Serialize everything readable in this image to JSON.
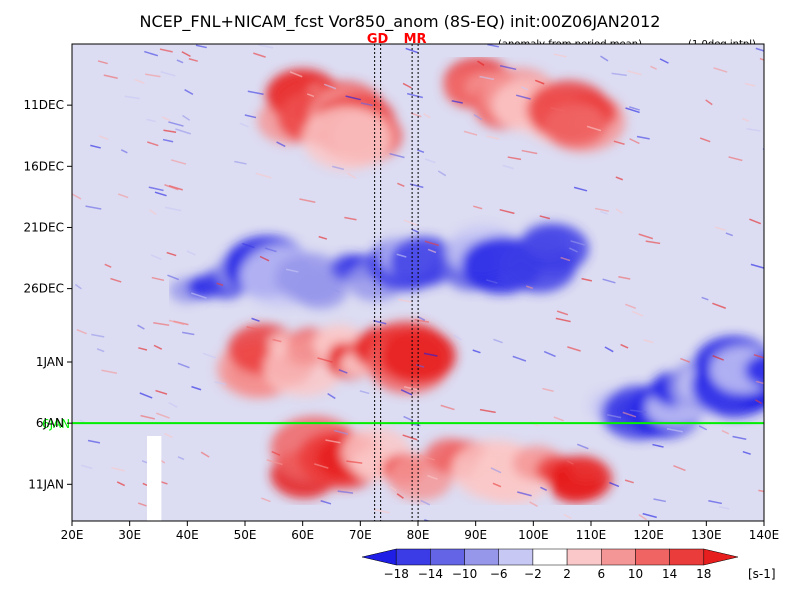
{
  "chart_data": {
    "type": "heatmap",
    "title": "NCEP_FNL+NICAM_fcst Vor850_anom (8S-EQ) init:00Z06JAN2012",
    "subtitle_left": "(anomaly from period mean)",
    "subtitle_right": "(1.0deg intpl)",
    "markers": [
      {
        "label": "GD",
        "x": 73,
        "color": "#ff0000"
      },
      {
        "label": "MR",
        "x": 79.5,
        "color": "#ff0000"
      }
    ],
    "x_ticks": [
      {
        "label": "20E",
        "value": 20
      },
      {
        "label": "30E",
        "value": 30
      },
      {
        "label": "40E",
        "value": 40
      },
      {
        "label": "50E",
        "value": 50
      },
      {
        "label": "60E",
        "value": 60
      },
      {
        "label": "70E",
        "value": 70
      },
      {
        "label": "80E",
        "value": 80
      },
      {
        "label": "90E",
        "value": 90
      },
      {
        "label": "100E",
        "value": 100
      },
      {
        "label": "110E",
        "value": 110
      },
      {
        "label": "120E",
        "value": 120
      },
      {
        "label": "130E",
        "value": 130
      },
      {
        "label": "140E",
        "value": 140
      }
    ],
    "xlim": [
      20,
      140
    ],
    "y_ticks": [
      {
        "label": "11DEC",
        "value": "2011-12-11"
      },
      {
        "label": "16DEC",
        "value": "2011-12-16"
      },
      {
        "label": "21DEC",
        "value": "2011-12-21"
      },
      {
        "label": "26DEC",
        "value": "2011-12-26"
      },
      {
        "label": "1JAN",
        "value": "2012-01-01"
      },
      {
        "label": "6JAN",
        "value": "2012-01-06"
      },
      {
        "label": "11JAN",
        "value": "2012-01-11"
      }
    ],
    "ylim": [
      "2011-12-06",
      "2012-01-14"
    ],
    "y_reversed": true,
    "forecast_init_line": {
      "label": "6JAN",
      "value": "2012-01-06",
      "color": "#00ee00"
    },
    "colorbar": {
      "unit": "[s-1]",
      "levels": [
        -18,
        -14,
        -10,
        -6,
        -2,
        2,
        6,
        10,
        14,
        18
      ],
      "colors": [
        "#1e1ee6",
        "#3c3ce6",
        "#6464e6",
        "#9696eb",
        "#c8c8f5",
        "#ffffff",
        "#fac8c8",
        "#f59696",
        "#f06464",
        "#eb3c3c",
        "#e61e1e"
      ],
      "tick_labels": [
        "-18",
        "-14",
        "-10",
        "-6",
        "-2",
        "2",
        "6",
        "10",
        "14",
        "18"
      ]
    },
    "missing_band_x": [
      33,
      35.5
    ],
    "features": [
      {
        "name": "negative band",
        "from": [
          40,
          "2011-12-26"
        ],
        "to": [
          105,
          "2011-12-23"
        ],
        "sign": -1
      },
      {
        "name": "positive region",
        "from": [
          50,
          "2012-01-01"
        ],
        "to": [
          80,
          "2011-12-31"
        ],
        "sign": 1
      },
      {
        "name": "positive region",
        "from": [
          60,
          "2012-01-09"
        ],
        "to": [
          110,
          "2012-01-10"
        ],
        "sign": 1
      },
      {
        "name": "negative region",
        "from": [
          115,
          "2012-01-05"
        ],
        "to": [
          140,
          "2012-01-02"
        ],
        "sign": -1
      },
      {
        "name": "positive region",
        "from": [
          90,
          "2011-12-10"
        ],
        "to": [
          110,
          "2011-12-12"
        ],
        "sign": 1
      },
      {
        "name": "positive region",
        "from": [
          60,
          "2011-12-11"
        ],
        "to": [
          70,
          "2011-12-13"
        ],
        "sign": 1
      }
    ]
  }
}
